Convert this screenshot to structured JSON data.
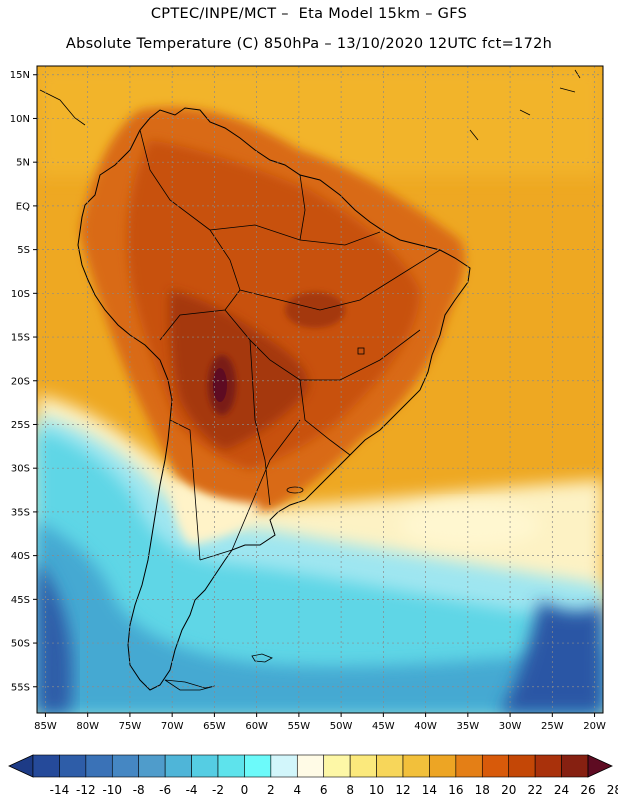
{
  "header": {
    "line1": "CPTEC/INPE/MCT –  Eta Model 15km – GFS",
    "line2": "Absolute Temperature (C) 850hPa – 13/10/2020 12UTC fct=172h"
  },
  "map": {
    "lat_labels": [
      "15N",
      "10N",
      "5N",
      "EQ",
      "5S",
      "10S",
      "15S",
      "20S",
      "25S",
      "30S",
      "35S",
      "40S",
      "45S",
      "50S",
      "55S"
    ],
    "lon_labels": [
      "85W",
      "80W",
      "75W",
      "70W",
      "65W",
      "60W",
      "55W",
      "50W",
      "45W",
      "40W",
      "35W",
      "30W",
      "25W",
      "20W"
    ],
    "lat_values": [
      15,
      10,
      5,
      0,
      -5,
      -10,
      -15,
      -20,
      -25,
      -30,
      -35,
      -40,
      -45,
      -50,
      -55
    ],
    "lon_values": [
      -85,
      -80,
      -75,
      -70,
      -65,
      -60,
      -55,
      -50,
      -45,
      -40,
      -35,
      -30,
      -25,
      -20
    ],
    "extent": {
      "lon_min": -86,
      "lon_max": -19,
      "lat_min": -58,
      "lat_max": 16
    }
  },
  "colorbar": {
    "labels": [
      "-14",
      "-12",
      "-10",
      "-8",
      "-6",
      "-4",
      "-2",
      "0",
      "2",
      "4",
      "6",
      "8",
      "10",
      "12",
      "14",
      "16",
      "18",
      "20",
      "22",
      "24",
      "26",
      "28"
    ],
    "colors": [
      "#1d3b86",
      "#254a9a",
      "#2e5da8",
      "#3a72b7",
      "#4587c3",
      "#4f9ccb",
      "#4fb5d8",
      "#55cde3",
      "#5ee3ec",
      "#6cfafa",
      "#d2f6fb",
      "#fffbe6",
      "#fdf7a6",
      "#fbe97c",
      "#f7d65a",
      "#f2c03b",
      "#eda524",
      "#e47f16",
      "#d85a0a",
      "#c44706",
      "#a9310b",
      "#862011",
      "#5e0b22"
    ]
  },
  "colors": {
    "ocean_tropical": "#eea822",
    "land_hot": "#cc5a12",
    "land_very_hot": "#8a2a12",
    "cold_ocean": "#4fb8dc",
    "deep_cold": "#2e5da8"
  }
}
